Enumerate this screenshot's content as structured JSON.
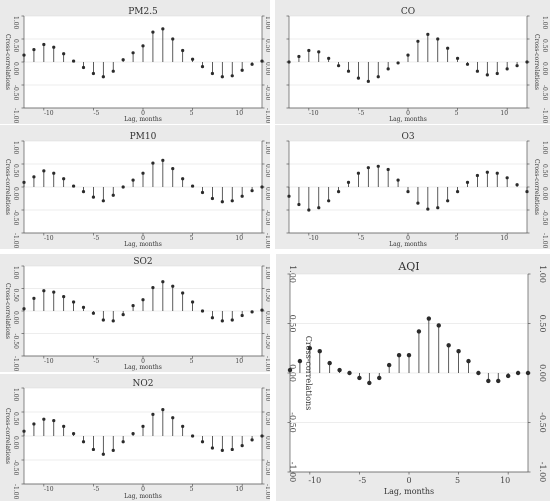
{
  "chart_data": [
    {
      "type": "stem",
      "title": "PM2.5",
      "xlabel": "Lag, months",
      "ylabel": "Cross-correlations",
      "ylim": [
        -1.0,
        1.0
      ],
      "xlim": [
        -12,
        12
      ],
      "xticks": [
        -10,
        -5,
        0,
        5,
        10
      ],
      "yticks": [
        -1.0,
        -0.5,
        0.0,
        0.5,
        1.0
      ],
      "ytick_labels": [
        "-1.00",
        "-0.50",
        "0.00",
        "0.50",
        "1.00"
      ],
      "x": [
        -12,
        -11,
        -10,
        -9,
        -8,
        -7,
        -6,
        -5,
        -4,
        -3,
        -2,
        -1,
        0,
        1,
        2,
        3,
        4,
        5,
        6,
        7,
        8,
        9,
        10,
        11,
        12
      ],
      "values": [
        0.15,
        0.27,
        0.38,
        0.32,
        0.18,
        0.02,
        -0.12,
        -0.25,
        -0.32,
        -0.2,
        0.05,
        0.2,
        0.35,
        0.65,
        0.72,
        0.5,
        0.25,
        0.06,
        -0.1,
        -0.25,
        -0.32,
        -0.3,
        -0.18,
        -0.05,
        0.02
      ]
    },
    {
      "type": "stem",
      "title": "CO",
      "xlabel": "Lag, months",
      "ylabel": "Cross-correlations",
      "ylim": [
        -1.0,
        1.0
      ],
      "xlim": [
        -12,
        12
      ],
      "xticks": [
        -10,
        -5,
        0,
        5,
        10
      ],
      "yticks": [
        -1.0,
        -0.5,
        0.0,
        0.5,
        1.0
      ],
      "ytick_labels": [
        "-1.00",
        "-0.50",
        "0.00",
        "0.50",
        "1.00"
      ],
      "x": [
        -12,
        -11,
        -10,
        -9,
        -8,
        -7,
        -6,
        -5,
        -4,
        -3,
        -2,
        -1,
        0,
        1,
        2,
        3,
        4,
        5,
        6,
        7,
        8,
        9,
        10,
        11,
        12
      ],
      "values": [
        0.0,
        0.12,
        0.25,
        0.22,
        0.08,
        -0.08,
        -0.2,
        -0.35,
        -0.42,
        -0.32,
        -0.15,
        -0.02,
        0.15,
        0.45,
        0.6,
        0.5,
        0.3,
        0.08,
        -0.05,
        -0.2,
        -0.28,
        -0.25,
        -0.15,
        -0.08,
        0.0
      ]
    },
    {
      "type": "stem",
      "title": "PM10",
      "xlabel": "Lag, months",
      "ylabel": "Cross-correlations",
      "ylim": [
        -1.0,
        1.0
      ],
      "xlim": [
        -12,
        12
      ],
      "xticks": [
        -10,
        -5,
        0,
        5,
        10
      ],
      "yticks": [
        -1.0,
        -0.5,
        0.0,
        0.5,
        1.0
      ],
      "ytick_labels": [
        "-1.00",
        "-0.50",
        "0.00",
        "0.50",
        "1.00"
      ],
      "x": [
        -12,
        -11,
        -10,
        -9,
        -8,
        -7,
        -6,
        -5,
        -4,
        -3,
        -2,
        -1,
        0,
        1,
        2,
        3,
        4,
        5,
        6,
        7,
        8,
        9,
        10,
        11,
        12
      ],
      "values": [
        0.1,
        0.22,
        0.35,
        0.3,
        0.18,
        0.02,
        -0.1,
        -0.22,
        -0.3,
        -0.18,
        0.0,
        0.15,
        0.3,
        0.52,
        0.58,
        0.4,
        0.18,
        0.02,
        -0.12,
        -0.25,
        -0.32,
        -0.3,
        -0.2,
        -0.08,
        0.0
      ]
    },
    {
      "type": "stem",
      "title": "O3",
      "xlabel": "Lag, months",
      "ylabel": "Cross-correlations",
      "ylim": [
        -1.0,
        1.0
      ],
      "xlim": [
        -12,
        12
      ],
      "xticks": [
        -10,
        -5,
        0,
        5,
        10
      ],
      "yticks": [
        -1.0,
        -0.5,
        0.0,
        0.5,
        1.0
      ],
      "ytick_labels": [
        "-1.00",
        "-0.50",
        "0.00",
        "0.50",
        "1.00"
      ],
      "x": [
        -12,
        -11,
        -10,
        -9,
        -8,
        -7,
        -6,
        -5,
        -4,
        -3,
        -2,
        -1,
        0,
        1,
        2,
        3,
        4,
        5,
        6,
        7,
        8,
        9,
        10,
        11,
        12
      ],
      "values": [
        -0.2,
        -0.38,
        -0.5,
        -0.45,
        -0.3,
        -0.1,
        0.1,
        0.3,
        0.42,
        0.45,
        0.38,
        0.15,
        -0.1,
        -0.35,
        -0.48,
        -0.45,
        -0.3,
        -0.1,
        0.1,
        0.25,
        0.32,
        0.3,
        0.2,
        0.05,
        -0.1
      ]
    },
    {
      "type": "stem",
      "title": "SO2",
      "xlabel": "Lag, months",
      "ylabel": "Cross-correlations",
      "ylim": [
        -1.0,
        1.0
      ],
      "xlim": [
        -12,
        12
      ],
      "xticks": [
        -10,
        -5,
        0,
        5,
        10
      ],
      "yticks": [
        -1.0,
        -0.5,
        0.0,
        0.5,
        1.0
      ],
      "ytick_labels": [
        "-1.00",
        "-0.50",
        "0.00",
        "0.50",
        "1.00"
      ],
      "x": [
        -12,
        -11,
        -10,
        -9,
        -8,
        -7,
        -6,
        -5,
        -4,
        -3,
        -2,
        -1,
        0,
        1,
        2,
        3,
        4,
        5,
        6,
        7,
        8,
        9,
        10,
        11,
        12
      ],
      "values": [
        0.05,
        0.28,
        0.45,
        0.42,
        0.32,
        0.2,
        0.08,
        -0.05,
        -0.2,
        -0.22,
        -0.08,
        0.12,
        0.25,
        0.52,
        0.65,
        0.55,
        0.4,
        0.2,
        0.0,
        -0.15,
        -0.22,
        -0.2,
        -0.1,
        -0.02,
        0.02
      ]
    },
    {
      "type": "stem",
      "title": "NO2",
      "xlabel": "Lag, months",
      "ylabel": "Cross-correlations",
      "ylim": [
        -1.0,
        1.0
      ],
      "xlim": [
        -12,
        12
      ],
      "xticks": [
        -10,
        -5,
        0,
        5,
        10
      ],
      "yticks": [
        -1.0,
        -0.5,
        0.0,
        0.5,
        1.0
      ],
      "ytick_labels": [
        "-1.00",
        "-0.50",
        "0.00",
        "0.50",
        "1.00"
      ],
      "x": [
        -12,
        -11,
        -10,
        -9,
        -8,
        -7,
        -6,
        -5,
        -4,
        -3,
        -2,
        -1,
        0,
        1,
        2,
        3,
        4,
        5,
        6,
        7,
        8,
        9,
        10,
        11,
        12
      ],
      "values": [
        0.1,
        0.25,
        0.35,
        0.32,
        0.2,
        0.05,
        -0.12,
        -0.28,
        -0.38,
        -0.3,
        -0.12,
        0.05,
        0.2,
        0.45,
        0.55,
        0.38,
        0.2,
        0.0,
        -0.12,
        -0.25,
        -0.3,
        -0.28,
        -0.2,
        -0.08,
        0.0
      ]
    },
    {
      "type": "stem",
      "title": "AQI",
      "xlabel": "Lag, months",
      "ylabel": "Cross-correlations",
      "ylim": [
        -1.0,
        1.0
      ],
      "xlim": [
        -12,
        12
      ],
      "xticks": [
        -10,
        -5,
        0,
        5,
        10
      ],
      "yticks": [
        -1.0,
        -0.5,
        0.0,
        0.5,
        1.0
      ],
      "ytick_labels": [
        "-1.00",
        "-0.50",
        "0.00",
        "0.50",
        "1.00"
      ],
      "x": [
        -12,
        -11,
        -10,
        -9,
        -8,
        -7,
        -6,
        -5,
        -4,
        -3,
        -2,
        -1,
        0,
        1,
        2,
        3,
        4,
        5,
        6,
        7,
        8,
        9,
        10,
        11,
        12
      ],
      "values": [
        0.03,
        0.12,
        0.25,
        0.22,
        0.1,
        0.03,
        0.0,
        -0.05,
        -0.1,
        -0.05,
        0.08,
        0.18,
        0.18,
        0.42,
        0.55,
        0.48,
        0.28,
        0.22,
        0.12,
        0.0,
        -0.08,
        -0.08,
        -0.03,
        0.0,
        0.0
      ]
    }
  ]
}
